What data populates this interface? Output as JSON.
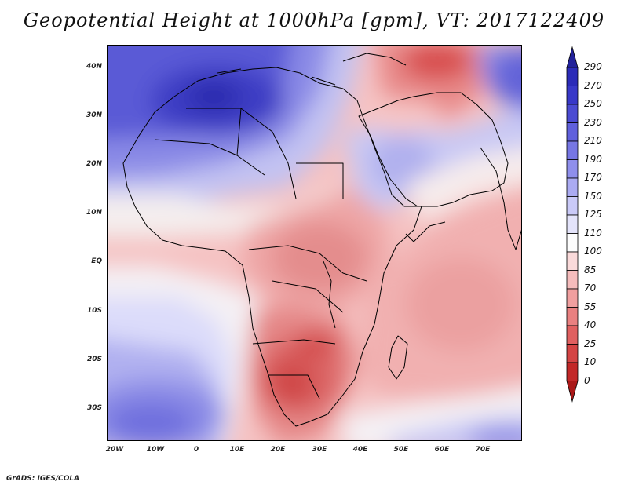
{
  "title": "Geopotential Height at 1000hPa [gpm], VT: 2017122409",
  "credit": "GrADS: IGES/COLA",
  "lat_labels": [
    "40N",
    "30N",
    "20N",
    "10N",
    "EQ",
    "10S",
    "20S",
    "30S"
  ],
  "lon_labels": [
    "20W",
    "10W",
    "0",
    "10E",
    "20E",
    "30E",
    "40E",
    "50E",
    "60E",
    "70E"
  ],
  "colorbar": {
    "labels": [
      "290",
      "270",
      "250",
      "230",
      "210",
      "190",
      "170",
      "150",
      "125",
      "110",
      "100",
      "85",
      "70",
      "55",
      "40",
      "25",
      "10",
      "0"
    ],
    "colors": [
      "#22229a",
      "#2b2bb8",
      "#3838c8",
      "#4b4bd2",
      "#6060dc",
      "#7676e4",
      "#8f8fec",
      "#ababf2",
      "#cacaf8",
      "#e4e4fb",
      "#fdfdfd",
      "#fadada",
      "#f5bcbc",
      "#f09f9f",
      "#e98080",
      "#e06060",
      "#d44444",
      "#c22828",
      "#aa1818"
    ]
  }
}
